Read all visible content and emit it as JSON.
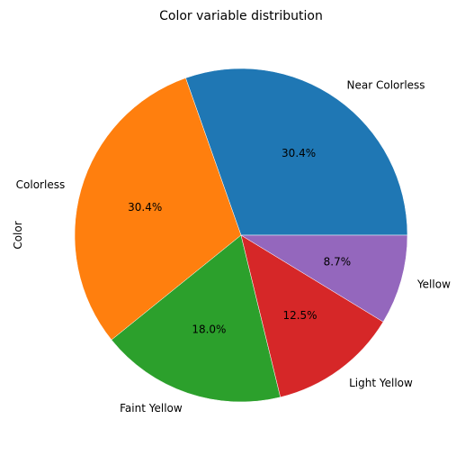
{
  "chart_data": {
    "type": "pie",
    "title": "Color variable distribution",
    "ylabel": "Color",
    "categories": [
      "Near Colorless",
      "Colorless",
      "Faint Yellow",
      "Light Yellow",
      "Yellow"
    ],
    "values": [
      30.4,
      30.4,
      18.0,
      12.5,
      8.7
    ],
    "value_labels": [
      "30.4%",
      "30.4%",
      "18.0%",
      "12.5%",
      "8.7%"
    ],
    "colors": [
      "#1f77b4",
      "#ff7f0e",
      "#2ca02c",
      "#d62728",
      "#9467bd"
    ],
    "start_angle_deg": 0,
    "direction": "counterclockwise",
    "legend": "none"
  }
}
